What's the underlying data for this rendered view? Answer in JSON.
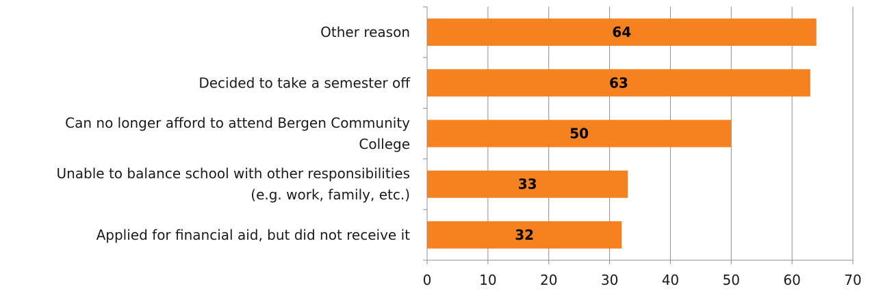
{
  "chart_data": {
    "type": "bar",
    "orientation": "horizontal",
    "categories": [
      [
        "Other reason"
      ],
      [
        "Decided to take a semester off"
      ],
      [
        "Can no longer afford to attend Bergen Community",
        "College"
      ],
      [
        "Unable to balance school with other responsibilities",
        "(e.g. work, family, etc.)"
      ],
      [
        "Applied for financial aid, but did not receive it"
      ]
    ],
    "values": [
      64,
      63,
      50,
      33,
      32
    ],
    "xlim": [
      0,
      70
    ],
    "xticks": [
      0,
      10,
      20,
      30,
      40,
      50,
      60,
      70
    ],
    "grid": "vertical",
    "legend": "none",
    "bar_color": "#F5821F",
    "grid_color": "#8c8c8c",
    "axis_color": "#8c8c8c"
  }
}
